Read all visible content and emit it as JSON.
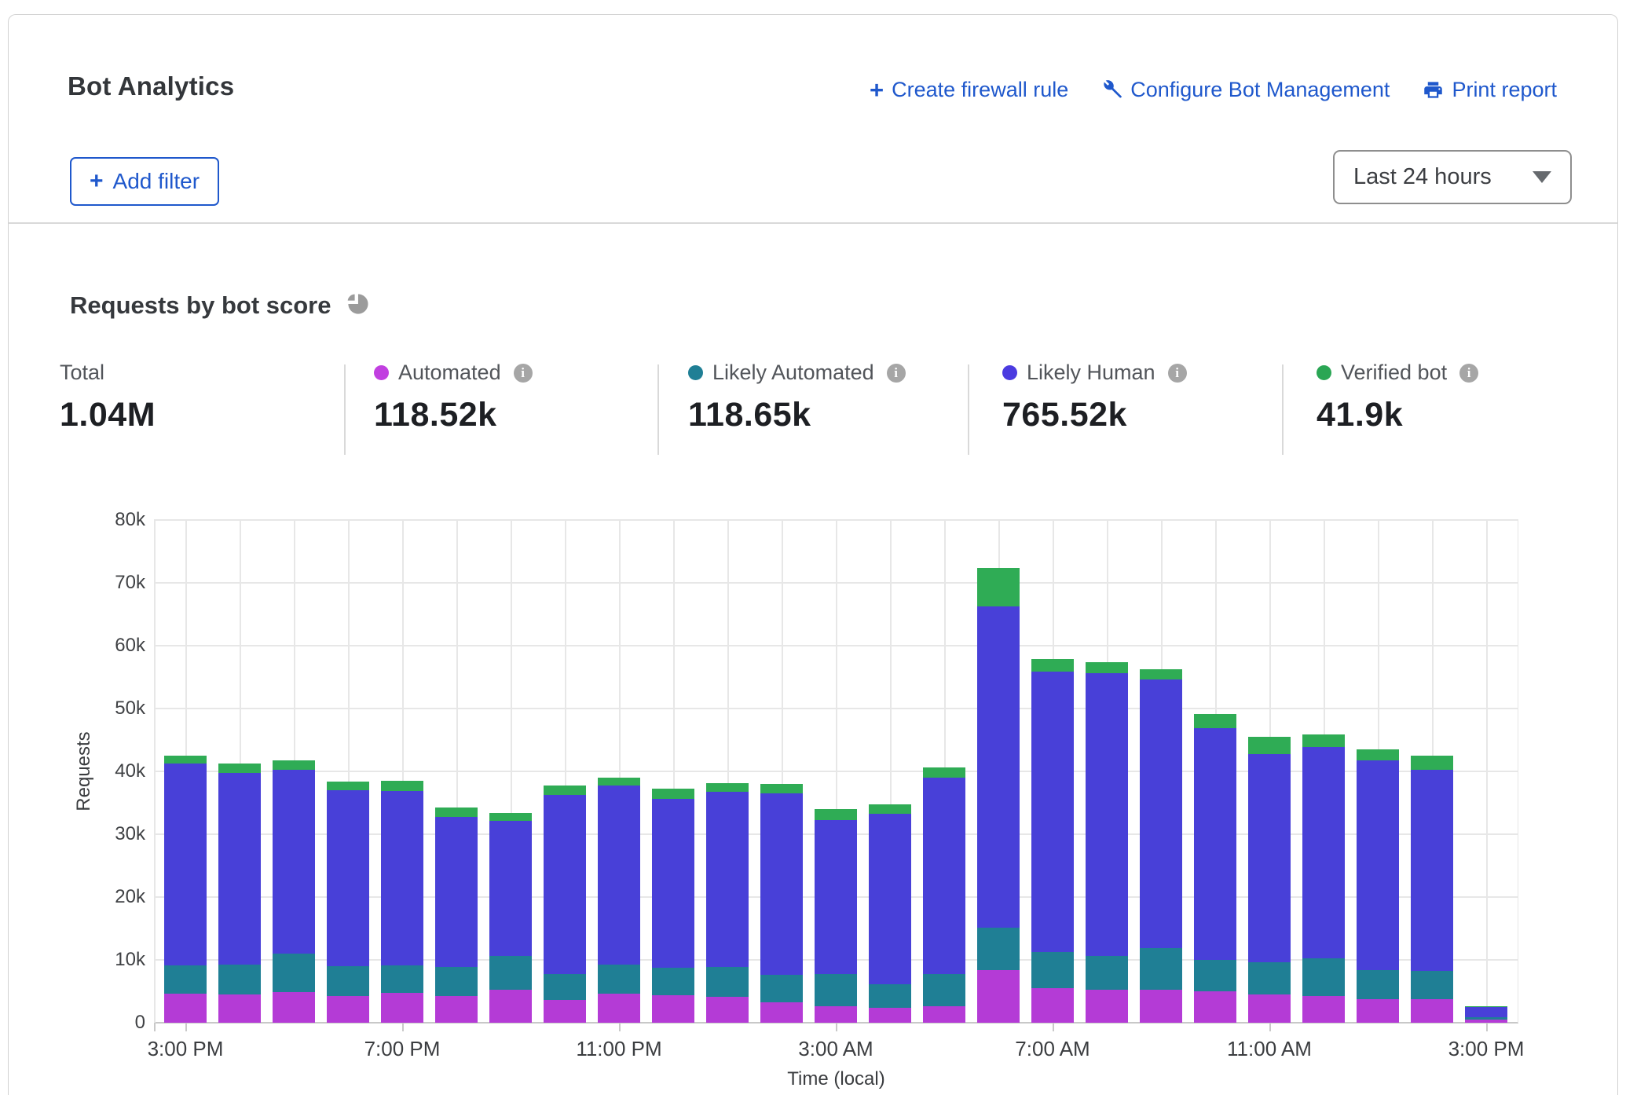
{
  "header": {
    "title": "Bot Analytics",
    "actions": [
      {
        "label": "Create firewall rule",
        "icon": "plus-icon"
      },
      {
        "label": "Configure Bot Management",
        "icon": "wrench-icon"
      },
      {
        "label": "Print report",
        "icon": "printer-icon"
      }
    ],
    "add_filter_label": "Add filter",
    "time_range_selected": "Last 24 hours"
  },
  "section": {
    "title": "Requests by bot score",
    "icon": "pie-chart-icon"
  },
  "stats": [
    {
      "label": "Total",
      "value": "1.04M",
      "dot_color": "",
      "has_info": false
    },
    {
      "label": "Automated",
      "value": "118.52k",
      "dot_color": "#c13fe0",
      "has_info": true
    },
    {
      "label": "Likely Automated",
      "value": "118.65k",
      "dot_color": "#1f7f95",
      "has_info": true
    },
    {
      "label": "Likely Human",
      "value": "765.52k",
      "dot_color": "#4b3be0",
      "has_info": true
    },
    {
      "label": "Verified bot",
      "value": "41.9k",
      "dot_color": "#2aa654",
      "has_info": true
    }
  ],
  "chart_data": {
    "type": "bar",
    "stacked": true,
    "title": "Requests by bot score",
    "xlabel": "Time (local)",
    "ylabel": "Requests",
    "values_unit": "thousands of requests",
    "ylim_thousands": [
      0,
      80
    ],
    "ytick_step_thousands": 10,
    "grid": true,
    "categories": [
      "3:00 PM",
      "4:00 PM",
      "5:00 PM",
      "6:00 PM",
      "7:00 PM",
      "8:00 PM",
      "9:00 PM",
      "10:00 PM",
      "11:00 PM",
      "12:00 AM",
      "1:00 AM",
      "2:00 AM",
      "3:00 AM",
      "4:00 AM",
      "5:00 AM",
      "6:00 AM",
      "7:00 AM",
      "8:00 AM",
      "9:00 AM",
      "10:00 AM",
      "11:00 AM",
      "12:00 PM",
      "1:00 PM",
      "2:00 PM",
      "3:00 PM"
    ],
    "x_tick_indices": [
      0,
      4,
      8,
      12,
      16,
      20,
      24
    ],
    "series": [
      {
        "name": "Automated",
        "color": "#b43bd6",
        "values": [
          4.6,
          4.5,
          4.9,
          4.2,
          4.7,
          4.2,
          5.2,
          3.6,
          4.6,
          4.4,
          4.1,
          3.2,
          2.6,
          2.4,
          2.6,
          8.4,
          5.5,
          5.3,
          5.3,
          5.0,
          4.5,
          4.3,
          3.8,
          3.7,
          0.5
        ]
      },
      {
        "name": "Likely Automated",
        "color": "#1f7f95",
        "values": [
          4.5,
          4.7,
          6.1,
          4.8,
          4.4,
          4.7,
          5.4,
          4.2,
          4.7,
          4.3,
          4.8,
          4.4,
          5.1,
          3.7,
          5.2,
          6.7,
          5.8,
          5.3,
          6.6,
          5.0,
          5.1,
          5.9,
          4.6,
          4.5,
          0.4
        ]
      },
      {
        "name": "Likely Human",
        "color": "#4840d8",
        "values": [
          32.2,
          30.6,
          29.2,
          28.0,
          27.8,
          23.8,
          21.5,
          28.4,
          28.5,
          26.9,
          27.9,
          28.9,
          24.5,
          27.2,
          31.2,
          51.2,
          44.6,
          45.0,
          42.7,
          36.9,
          33.2,
          33.7,
          33.4,
          32.1,
          1.6
        ]
      },
      {
        "name": "Verified bot",
        "color": "#2fac55",
        "values": [
          1.2,
          1.4,
          1.5,
          1.4,
          1.6,
          1.6,
          1.3,
          1.6,
          1.2,
          1.6,
          1.3,
          1.5,
          1.8,
          1.4,
          1.6,
          6.1,
          2.0,
          1.8,
          1.7,
          2.2,
          2.7,
          2.0,
          1.7,
          2.2,
          0.1
        ]
      }
    ],
    "legend_position": "top"
  },
  "colors": {
    "link_blue": "#1f58cc",
    "card_border": "#d2d2d2",
    "gridline": "#e7e7e7"
  }
}
